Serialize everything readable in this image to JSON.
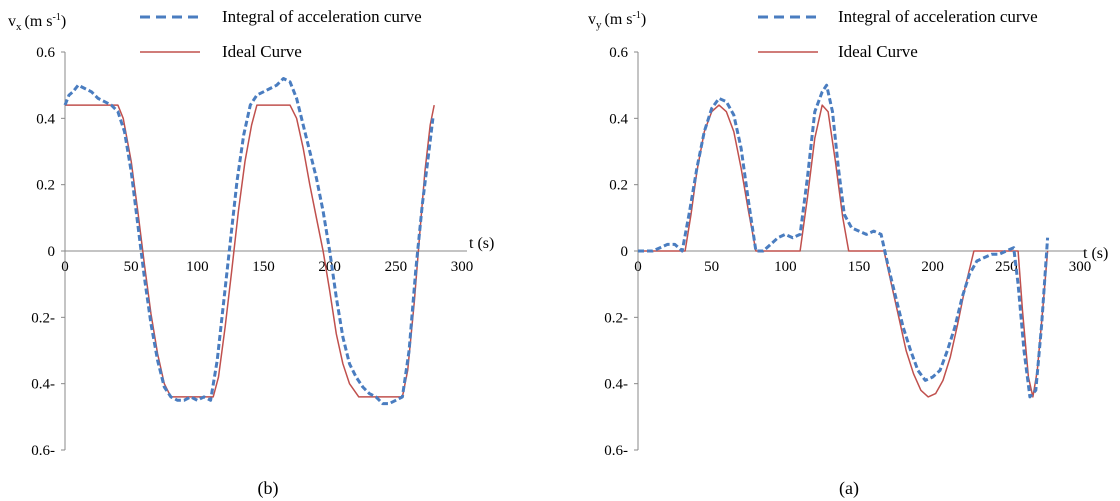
{
  "chart_data": [
    {
      "type": "line",
      "caption": "(b)",
      "ylabel": "v",
      "ylabel_sub": "x",
      "ylabel_unit": "(m s",
      "ylabel_exp": "-1",
      "ylabel_close": ")",
      "xlabel": "t (s)",
      "xlim": [
        0,
        300
      ],
      "ylim": [
        -0.6,
        0.6
      ],
      "x_ticks": [
        "0",
        "50",
        "100",
        "150",
        "200",
        "250",
        "300"
      ],
      "y_ticks": [
        "0.6",
        "0.4",
        "0.2",
        "0",
        "0.2-",
        "0.4-",
        "0.6-"
      ],
      "y_tick_values": [
        0.6,
        0.4,
        0.2,
        0,
        -0.2,
        -0.4,
        -0.6
      ],
      "grid": false,
      "legend_position": "top",
      "series": [
        {
          "name": "Integral of acceleration curve",
          "color": "#4a7dc0",
          "style": "dashed",
          "points": [
            [
              0,
              0.44
            ],
            [
              3,
              0.47
            ],
            [
              6,
              0.48
            ],
            [
              10,
              0.5
            ],
            [
              15,
              0.49
            ],
            [
              20,
              0.48
            ],
            [
              25,
              0.46
            ],
            [
              30,
              0.45
            ],
            [
              35,
              0.44
            ],
            [
              40,
              0.42
            ],
            [
              45,
              0.36
            ],
            [
              50,
              0.24
            ],
            [
              55,
              0.08
            ],
            [
              60,
              -0.08
            ],
            [
              65,
              -0.22
            ],
            [
              70,
              -0.33
            ],
            [
              75,
              -0.41
            ],
            [
              80,
              -0.44
            ],
            [
              85,
              -0.45
            ],
            [
              90,
              -0.45
            ],
            [
              95,
              -0.44
            ],
            [
              100,
              -0.45
            ],
            [
              105,
              -0.44
            ],
            [
              110,
              -0.45
            ],
            [
              115,
              -0.33
            ],
            [
              120,
              -0.15
            ],
            [
              125,
              0.03
            ],
            [
              130,
              0.21
            ],
            [
              135,
              0.35
            ],
            [
              140,
              0.44
            ],
            [
              145,
              0.47
            ],
            [
              150,
              0.48
            ],
            [
              155,
              0.49
            ],
            [
              160,
              0.5
            ],
            [
              165,
              0.52
            ],
            [
              170,
              0.51
            ],
            [
              175,
              0.46
            ],
            [
              180,
              0.38
            ],
            [
              185,
              0.3
            ],
            [
              190,
              0.22
            ],
            [
              195,
              0.12
            ],
            [
              200,
              0.0
            ],
            [
              205,
              -0.14
            ],
            [
              210,
              -0.26
            ],
            [
              215,
              -0.34
            ],
            [
              220,
              -0.38
            ],
            [
              225,
              -0.41
            ],
            [
              230,
              -0.43
            ],
            [
              235,
              -0.44
            ],
            [
              240,
              -0.46
            ],
            [
              245,
              -0.46
            ],
            [
              250,
              -0.45
            ],
            [
              255,
              -0.44
            ],
            [
              260,
              -0.3
            ],
            [
              265,
              -0.06
            ],
            [
              270,
              0.14
            ],
            [
              275,
              0.3
            ],
            [
              278,
              0.4
            ]
          ]
        },
        {
          "name": "Ideal Curve",
          "color": "#c0504d",
          "style": "solid",
          "points": [
            [
              0,
              0.44
            ],
            [
              40,
              0.44
            ],
            [
              44,
              0.4
            ],
            [
              50,
              0.27
            ],
            [
              55,
              0.12
            ],
            [
              60,
              -0.04
            ],
            [
              65,
              -0.19
            ],
            [
              70,
              -0.31
            ],
            [
              75,
              -0.4
            ],
            [
              80,
              -0.44
            ],
            [
              112,
              -0.44
            ],
            [
              116,
              -0.38
            ],
            [
              121,
              -0.23
            ],
            [
              126,
              -0.06
            ],
            [
              131,
              0.12
            ],
            [
              136,
              0.27
            ],
            [
              141,
              0.38
            ],
            [
              145,
              0.44
            ],
            [
              170,
              0.44
            ],
            [
              175,
              0.4
            ],
            [
              180,
              0.31
            ],
            [
              185,
              0.2
            ],
            [
              190,
              0.1
            ],
            [
              195,
              0.0
            ],
            [
              200,
              -0.12
            ],
            [
              205,
              -0.25
            ],
            [
              210,
              -0.34
            ],
            [
              215,
              -0.4
            ],
            [
              222,
              -0.44
            ],
            [
              255,
              -0.44
            ],
            [
              259,
              -0.36
            ],
            [
              264,
              -0.15
            ],
            [
              268,
              0.05
            ],
            [
              272,
              0.24
            ],
            [
              276,
              0.38
            ],
            [
              279,
              0.44
            ]
          ]
        }
      ]
    },
    {
      "type": "line",
      "caption": "(a)",
      "ylabel": "v",
      "ylabel_sub": "y",
      "ylabel_unit": "(m s",
      "ylabel_exp": "-1",
      "ylabel_close": ")",
      "xlabel": "t (s)",
      "xlim": [
        0,
        300
      ],
      "ylim": [
        -0.6,
        0.6
      ],
      "x_ticks": [
        "0",
        "50",
        "100",
        "150",
        "200",
        "250",
        "300"
      ],
      "y_ticks": [
        "0.6",
        "0.4",
        "0.2",
        "0",
        "0.2-",
        "0.4-",
        "0.6-"
      ],
      "y_tick_values": [
        0.6,
        0.4,
        0.2,
        0,
        -0.2,
        -0.4,
        -0.6
      ],
      "grid": false,
      "legend_position": "top",
      "series": [
        {
          "name": "Integral of acceleration curve",
          "color": "#4a7dc0",
          "style": "dashed",
          "points": [
            [
              0,
              0.0
            ],
            [
              5,
              0.0
            ],
            [
              10,
              0.0
            ],
            [
              15,
              0.01
            ],
            [
              20,
              0.02
            ],
            [
              25,
              0.02
            ],
            [
              30,
              0.0
            ],
            [
              35,
              0.12
            ],
            [
              40,
              0.25
            ],
            [
              45,
              0.36
            ],
            [
              50,
              0.43
            ],
            [
              55,
              0.46
            ],
            [
              60,
              0.45
            ],
            [
              65,
              0.41
            ],
            [
              70,
              0.31
            ],
            [
              75,
              0.15
            ],
            [
              80,
              0.0
            ],
            [
              85,
              0.0
            ],
            [
              90,
              0.02
            ],
            [
              95,
              0.04
            ],
            [
              100,
              0.05
            ],
            [
              105,
              0.04
            ],
            [
              110,
              0.05
            ],
            [
              115,
              0.22
            ],
            [
              120,
              0.42
            ],
            [
              125,
              0.48
            ],
            [
              128,
              0.5
            ],
            [
              132,
              0.42
            ],
            [
              136,
              0.25
            ],
            [
              140,
              0.11
            ],
            [
              145,
              0.07
            ],
            [
              150,
              0.06
            ],
            [
              155,
              0.05
            ],
            [
              160,
              0.06
            ],
            [
              165,
              0.05
            ],
            [
              170,
              -0.05
            ],
            [
              175,
              -0.14
            ],
            [
              180,
              -0.23
            ],
            [
              185,
              -0.3
            ],
            [
              190,
              -0.36
            ],
            [
              195,
              -0.39
            ],
            [
              200,
              -0.38
            ],
            [
              205,
              -0.36
            ],
            [
              210,
              -0.3
            ],
            [
              215,
              -0.23
            ],
            [
              220,
              -0.14
            ],
            [
              225,
              -0.07
            ],
            [
              230,
              -0.03
            ],
            [
              235,
              -0.02
            ],
            [
              240,
              -0.01
            ],
            [
              245,
              -0.01
            ],
            [
              250,
              0.0
            ],
            [
              255,
              0.01
            ],
            [
              258,
              -0.1
            ],
            [
              262,
              -0.3
            ],
            [
              266,
              -0.44
            ],
            [
              270,
              -0.42
            ],
            [
              274,
              -0.22
            ],
            [
              278,
              0.04
            ]
          ]
        },
        {
          "name": "Ideal Curve",
          "color": "#c0504d",
          "style": "solid",
          "points": [
            [
              0,
              0.0
            ],
            [
              32,
              0.0
            ],
            [
              36,
              0.11
            ],
            [
              40,
              0.24
            ],
            [
              45,
              0.36
            ],
            [
              50,
              0.42
            ],
            [
              55,
              0.44
            ],
            [
              60,
              0.42
            ],
            [
              65,
              0.36
            ],
            [
              70,
              0.25
            ],
            [
              75,
              0.12
            ],
            [
              80,
              0.0
            ],
            [
              110,
              0.0
            ],
            [
              115,
              0.16
            ],
            [
              120,
              0.34
            ],
            [
              125,
              0.44
            ],
            [
              129,
              0.42
            ],
            [
              134,
              0.27
            ],
            [
              139,
              0.1
            ],
            [
              143,
              0.0
            ],
            [
              167,
              0.0
            ],
            [
              172,
              -0.1
            ],
            [
              177,
              -0.2
            ],
            [
              182,
              -0.3
            ],
            [
              187,
              -0.37
            ],
            [
              192,
              -0.42
            ],
            [
              197,
              -0.44
            ],
            [
              202,
              -0.43
            ],
            [
              207,
              -0.39
            ],
            [
              212,
              -0.32
            ],
            [
              217,
              -0.22
            ],
            [
              222,
              -0.11
            ],
            [
              228,
              0.0
            ],
            [
              258,
              0.0
            ],
            [
              261,
              -0.18
            ],
            [
              265,
              -0.38
            ],
            [
              268,
              -0.44
            ],
            [
              271,
              -0.36
            ],
            [
              275,
              -0.16
            ],
            [
              278,
              0.0
            ]
          ]
        }
      ]
    }
  ]
}
